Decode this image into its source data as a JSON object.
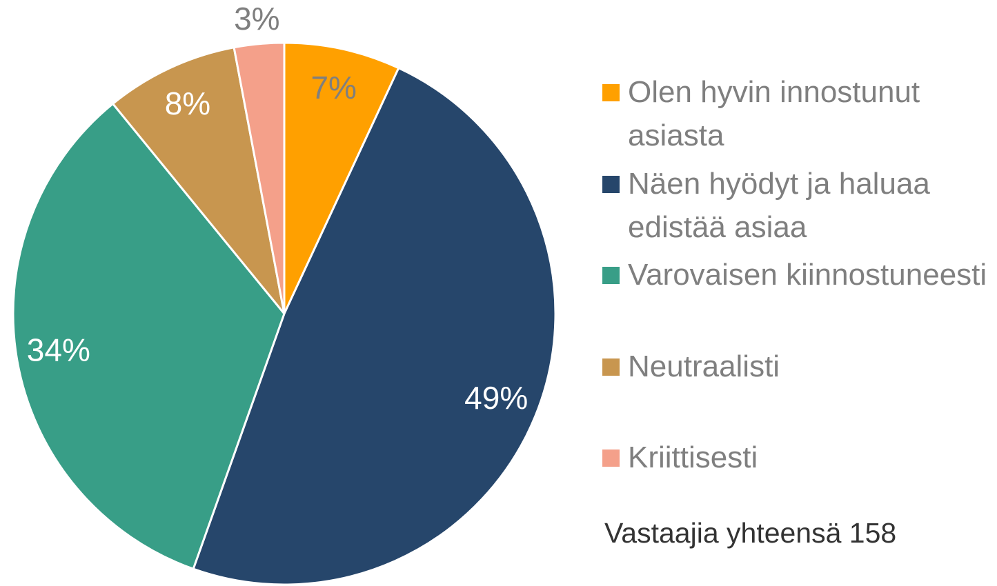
{
  "chart_data": {
    "type": "pie",
    "categories": [
      "Olen hyvin innostunut asiasta",
      "Näen hyödyt ja haluaa edistää asiaa",
      "Varovaisen kiinnostuneesti",
      "Neutraalisti",
      "Kriittisesti"
    ],
    "values": [
      7,
      49,
      34,
      8,
      3
    ],
    "value_labels": [
      "7%",
      "49%",
      "34%",
      "8%",
      "3%"
    ],
    "colors": [
      "#ffa000",
      "#26466b",
      "#389e87",
      "#c8964f",
      "#f4a08a"
    ],
    "label_colors": [
      "#7f7f7f",
      "#ffffff",
      "#ffffff",
      "#ffffff",
      "#7f7f7f"
    ],
    "note": "Vastaajia yhteensä 158",
    "legend": "right"
  }
}
